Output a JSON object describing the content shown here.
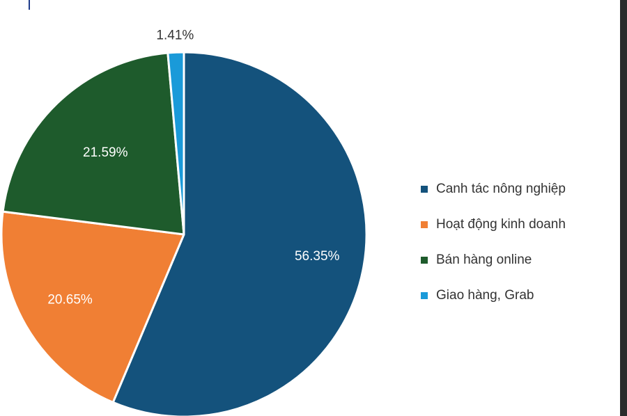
{
  "chart_data": {
    "type": "pie",
    "title": "",
    "slices": [
      {
        "label": "Canh tác nông nghiệp",
        "value": 56.35,
        "value_label": "56.35%",
        "color": "#14527c",
        "text_color": "#ffffff"
      },
      {
        "label": "Hoạt động kinh doanh",
        "value": 20.65,
        "value_label": "20.65%",
        "color": "#f07f34",
        "text_color": "#ffffff"
      },
      {
        "label": "Bán hàng online",
        "value": 21.59,
        "value_label": "21.59%",
        "color": "#1e5b2c",
        "text_color": "#ffffff"
      },
      {
        "label": "Giao hàng, Grab",
        "value": 1.41,
        "value_label": "1.41%",
        "color": "#1a9ad9",
        "text_color": "#333333"
      }
    ],
    "start": "12 o'clock",
    "direction": "clockwise",
    "legend_position": "right"
  }
}
